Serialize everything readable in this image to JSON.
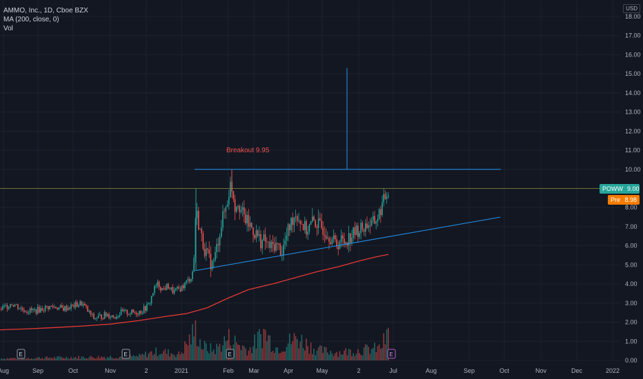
{
  "legend": {
    "title": "AMMO, Inc., 1D, Cboe BZX",
    "ma": "MA (200, close, 0)",
    "vol": "Vol"
  },
  "currency": "USD",
  "tags": {
    "last": {
      "symbol": "POWW",
      "value": "9.00",
      "color": "#26a69a"
    },
    "pre": {
      "symbol": "Pre",
      "value": "8.98",
      "color": "#f57c00"
    }
  },
  "annotations": {
    "breakout": "Breakout 9.95",
    "event_badge": "E"
  },
  "chart_data": {
    "type": "candlestick",
    "title": "AMMO, Inc., 1D, Cboe BZX",
    "ylim": [
      0,
      18
    ],
    "y_ticks": [
      "0.00",
      "1.00",
      "2.00",
      "3.00",
      "4.00",
      "5.00",
      "6.00",
      "7.00",
      "8.00",
      "9.00",
      "10.00",
      "11.00",
      "12.00",
      "13.00",
      "14.00",
      "15.00",
      "16.00",
      "17.00",
      "18.00"
    ],
    "x_ticks": [
      "Aug",
      "Sep",
      "Oct",
      "Nov",
      "2",
      "2021",
      "Feb",
      "Mar",
      "Apr",
      "May",
      "2",
      "Jul",
      "Aug",
      "Sep",
      "Oct",
      "Nov",
      "Dec",
      "2022"
    ],
    "close_path": [
      [
        0,
        2.7
      ],
      [
        8,
        2.8
      ],
      [
        15,
        3.0
      ],
      [
        22,
        2.9
      ],
      [
        30,
        2.7
      ],
      [
        40,
        2.6
      ],
      [
        50,
        2.6
      ],
      [
        60,
        2.7
      ],
      [
        70,
        2.8
      ],
      [
        80,
        2.8
      ],
      [
        90,
        2.7
      ],
      [
        100,
        2.8
      ],
      [
        110,
        2.9
      ],
      [
        118,
        3.0
      ],
      [
        126,
        2.6
      ],
      [
        135,
        2.2
      ],
      [
        145,
        2.3
      ],
      [
        155,
        2.4
      ],
      [
        165,
        2.3
      ],
      [
        175,
        2.5
      ],
      [
        185,
        2.5
      ],
      [
        195,
        2.5
      ],
      [
        205,
        2.6
      ],
      [
        215,
        2.9
      ],
      [
        222,
        3.7
      ],
      [
        228,
        4.0
      ],
      [
        235,
        3.7
      ],
      [
        242,
        3.9
      ],
      [
        250,
        3.6
      ],
      [
        258,
        3.7
      ],
      [
        265,
        3.9
      ],
      [
        272,
        4.2
      ],
      [
        277,
        4.4
      ],
      [
        280,
        5.0
      ],
      [
        283,
        7.9
      ],
      [
        287,
        7.2
      ],
      [
        292,
        6.3
      ],
      [
        297,
        5.7
      ],
      [
        302,
        5.3
      ],
      [
        307,
        5.0
      ],
      [
        312,
        5.6
      ],
      [
        318,
        6.8
      ],
      [
        323,
        7.6
      ],
      [
        328,
        8.2
      ],
      [
        333,
        9.2
      ],
      [
        336,
        9.0
      ],
      [
        340,
        8.0
      ],
      [
        344,
        8.4
      ],
      [
        348,
        7.9
      ],
      [
        353,
        7.5
      ],
      [
        358,
        7.2
      ],
      [
        363,
        7.0
      ],
      [
        368,
        6.7
      ],
      [
        373,
        6.5
      ],
      [
        378,
        6.2
      ],
      [
        383,
        6.3
      ],
      [
        388,
        6.0
      ],
      [
        393,
        5.9
      ],
      [
        398,
        6.1
      ],
      [
        403,
        5.9
      ],
      [
        408,
        5.7
      ],
      [
        413,
        6.3
      ],
      [
        418,
        6.9
      ],
      [
        423,
        7.4
      ],
      [
        428,
        7.7
      ],
      [
        433,
        7.4
      ],
      [
        438,
        7.1
      ],
      [
        443,
        6.8
      ],
      [
        448,
        7.0
      ],
      [
        453,
        7.3
      ],
      [
        458,
        7.2
      ],
      [
        463,
        7.0
      ],
      [
        468,
        6.9
      ],
      [
        473,
        6.7
      ],
      [
        478,
        6.5
      ],
      [
        483,
        6.2
      ],
      [
        488,
        6.1
      ],
      [
        493,
        6.3
      ],
      [
        498,
        6.2
      ],
      [
        503,
        6.4
      ],
      [
        508,
        6.5
      ],
      [
        513,
        6.7
      ],
      [
        518,
        6.8
      ],
      [
        523,
        6.9
      ],
      [
        528,
        7.0
      ],
      [
        533,
        7.2
      ],
      [
        538,
        7.1
      ],
      [
        543,
        7.3
      ],
      [
        548,
        7.6
      ],
      [
        553,
        8.1
      ],
      [
        558,
        8.6
      ],
      [
        563,
        9.0
      ]
    ],
    "ma200_path": [
      [
        0,
        1.6
      ],
      [
        40,
        1.65
      ],
      [
        80,
        1.72
      ],
      [
        120,
        1.8
      ],
      [
        160,
        1.9
      ],
      [
        200,
        2.08
      ],
      [
        240,
        2.3
      ],
      [
        270,
        2.45
      ],
      [
        300,
        2.75
      ],
      [
        330,
        3.25
      ],
      [
        360,
        3.7
      ],
      [
        400,
        4.05
      ],
      [
        430,
        4.35
      ],
      [
        460,
        4.65
      ],
      [
        490,
        4.9
      ],
      [
        520,
        5.2
      ],
      [
        545,
        5.42
      ],
      [
        563,
        5.55
      ]
    ],
    "volume_path": [
      [
        0,
        0.1
      ],
      [
        100,
        0.15
      ],
      [
        200,
        0.2
      ],
      [
        215,
        0.35
      ],
      [
        230,
        0.45
      ],
      [
        260,
        0.3
      ],
      [
        283,
        1.5
      ],
      [
        292,
        0.7
      ],
      [
        310,
        0.5
      ],
      [
        330,
        1.1
      ],
      [
        360,
        0.5
      ],
      [
        382,
        1.4
      ],
      [
        400,
        0.6
      ],
      [
        430,
        1.1
      ],
      [
        460,
        0.5
      ],
      [
        490,
        0.4
      ],
      [
        520,
        0.5
      ],
      [
        550,
        0.6
      ],
      [
        563,
        1.3
      ]
    ],
    "lines": [
      {
        "name": "resistance",
        "value": 10.0
      },
      {
        "name": "current",
        "value": 9.0
      }
    ],
    "trendline": {
      "from": [
        283,
        4.7
      ],
      "to": [
        725,
        7.5
      ]
    },
    "target": {
      "x": 503,
      "from": 10.0,
      "to": 15.3
    },
    "events": [
      30,
      182,
      333,
      567
    ]
  }
}
